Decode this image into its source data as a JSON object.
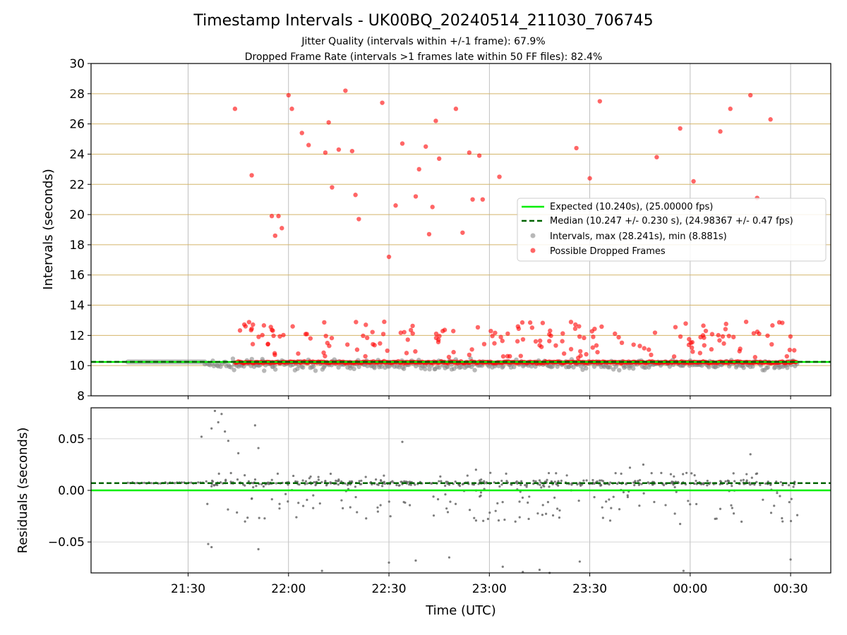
{
  "chart_data": [
    {
      "type": "scatter",
      "title": "Timestamp Intervals - UK00BQ_20240514_211030_706745",
      "subtitle_1": "Jitter Quality (intervals within +/-1 frame): 67.9%",
      "subtitle_2": "Dropped Frame Rate (intervals >1 frames late within 50 FF files): 82.4%",
      "ylabel": "Intervals (seconds)",
      "xlabel": "",
      "ylim": [
        8,
        30
      ],
      "yticks": [
        8,
        10,
        12,
        14,
        16,
        18,
        20,
        22,
        24,
        26,
        28,
        30
      ],
      "grid": "horizontal gold lines every 2 s, vertical grey lines at 30-minute ticks",
      "legend_position": "center-right",
      "legend": [
        "Expected (10.240s), (25.00000 fps)",
        "Median (10.247 +/- 0.230 s), (24.98367 +/- 0.47 fps)",
        "Intervals, max (28.241s), min (8.881s)",
        "Possible Dropped Frames"
      ],
      "expected_interval": 10.24,
      "median_interval": 10.247,
      "dropped_frames": [
        {
          "x": "21:44",
          "y": 27.0
        },
        {
          "x": "21:49",
          "y": 22.6
        },
        {
          "x": "21:55",
          "y": 19.9
        },
        {
          "x": "21:56",
          "y": 18.6
        },
        {
          "x": "21:57",
          "y": 19.9
        },
        {
          "x": "21:58",
          "y": 19.1
        },
        {
          "x": "22:00",
          "y": 27.9
        },
        {
          "x": "22:01",
          "y": 27.0
        },
        {
          "x": "22:04",
          "y": 25.4
        },
        {
          "x": "22:06",
          "y": 24.6
        },
        {
          "x": "22:11",
          "y": 24.1
        },
        {
          "x": "22:12",
          "y": 26.1
        },
        {
          "x": "22:13",
          "y": 21.8
        },
        {
          "x": "22:15",
          "y": 24.3
        },
        {
          "x": "22:17",
          "y": 28.2
        },
        {
          "x": "22:19",
          "y": 24.2
        },
        {
          "x": "22:20",
          "y": 21.3
        },
        {
          "x": "22:21",
          "y": 19.7
        },
        {
          "x": "22:28",
          "y": 27.4
        },
        {
          "x": "22:30",
          "y": 17.2
        },
        {
          "x": "22:32",
          "y": 20.6
        },
        {
          "x": "22:34",
          "y": 24.7
        },
        {
          "x": "22:38",
          "y": 21.2
        },
        {
          "x": "22:39",
          "y": 23.0
        },
        {
          "x": "22:41",
          "y": 24.5
        },
        {
          "x": "22:42",
          "y": 18.7
        },
        {
          "x": "22:43",
          "y": 20.5
        },
        {
          "x": "22:44",
          "y": 26.2
        },
        {
          "x": "22:45",
          "y": 23.7
        },
        {
          "x": "22:50",
          "y": 27.0
        },
        {
          "x": "22:52",
          "y": 18.8
        },
        {
          "x": "22:54",
          "y": 24.1
        },
        {
          "x": "22:55",
          "y": 21.0
        },
        {
          "x": "22:57",
          "y": 23.9
        },
        {
          "x": "22:58",
          "y": 21.0
        },
        {
          "x": "23:03",
          "y": 22.5
        },
        {
          "x": "23:26",
          "y": 24.4
        },
        {
          "x": "23:30",
          "y": 22.4
        },
        {
          "x": "23:33",
          "y": 27.5
        },
        {
          "x": "23:50",
          "y": 23.8
        },
        {
          "x": "23:57",
          "y": 25.7
        },
        {
          "x": "00:01",
          "y": 22.2
        },
        {
          "x": "00:09",
          "y": 25.5
        },
        {
          "x": "00:12",
          "y": 27.0
        },
        {
          "x": "00:18",
          "y": 27.9
        },
        {
          "x": "00:20",
          "y": 21.1
        },
        {
          "x": "00:24",
          "y": 26.3
        }
      ],
      "baseline": {
        "from": "21:12",
        "to": "00:32",
        "y": 10.24
      }
    },
    {
      "type": "scatter",
      "ylabel": "Residuals (seconds)",
      "xlabel": "Time (UTC)",
      "ylim": [
        -0.08,
        0.08
      ],
      "yticks": [
        0.05,
        0.0,
        -0.05
      ],
      "ytick_labels": [
        "0.05",
        "0.00",
        "−0.05"
      ],
      "xticks": [
        "21:30",
        "22:00",
        "22:30",
        "23:00",
        "23:30",
        "00:00",
        "00:30"
      ],
      "x_range": [
        "21:01",
        "00:42"
      ],
      "grid": "on",
      "expected_residual": 0.0,
      "median_residual": 0.007,
      "residual_points": [
        {
          "x": "21:38",
          "y": 0.077
        },
        {
          "x": "21:40",
          "y": 0.074
        },
        {
          "x": "21:39",
          "y": 0.066
        },
        {
          "x": "21:37",
          "y": 0.06
        },
        {
          "x": "21:41",
          "y": 0.057
        },
        {
          "x": "21:34",
          "y": 0.052
        },
        {
          "x": "21:42",
          "y": 0.048
        },
        {
          "x": "21:50",
          "y": 0.063
        },
        {
          "x": "21:51",
          "y": 0.041
        },
        {
          "x": "21:45",
          "y": 0.036
        },
        {
          "x": "21:36",
          "y": -0.052
        },
        {
          "x": "21:37",
          "y": -0.055
        },
        {
          "x": "21:51",
          "y": -0.057
        },
        {
          "x": "22:10",
          "y": -0.078
        },
        {
          "x": "22:30",
          "y": -0.07
        },
        {
          "x": "22:34",
          "y": 0.047
        },
        {
          "x": "22:38",
          "y": -0.068
        },
        {
          "x": "22:48",
          "y": -0.065
        },
        {
          "x": "23:04",
          "y": -0.074
        },
        {
          "x": "23:10",
          "y": -0.079
        },
        {
          "x": "23:15",
          "y": -0.077
        },
        {
          "x": "23:18",
          "y": -0.08
        },
        {
          "x": "23:27",
          "y": -0.069
        },
        {
          "x": "23:42",
          "y": 0.022
        },
        {
          "x": "23:46",
          "y": 0.025
        },
        {
          "x": "23:58",
          "y": -0.078
        },
        {
          "x": "00:18",
          "y": 0.035
        },
        {
          "x": "00:30",
          "y": -0.067
        },
        {
          "x": "22:56",
          "y": 0.02
        },
        {
          "x": "00:32",
          "y": -0.024
        }
      ]
    }
  ]
}
